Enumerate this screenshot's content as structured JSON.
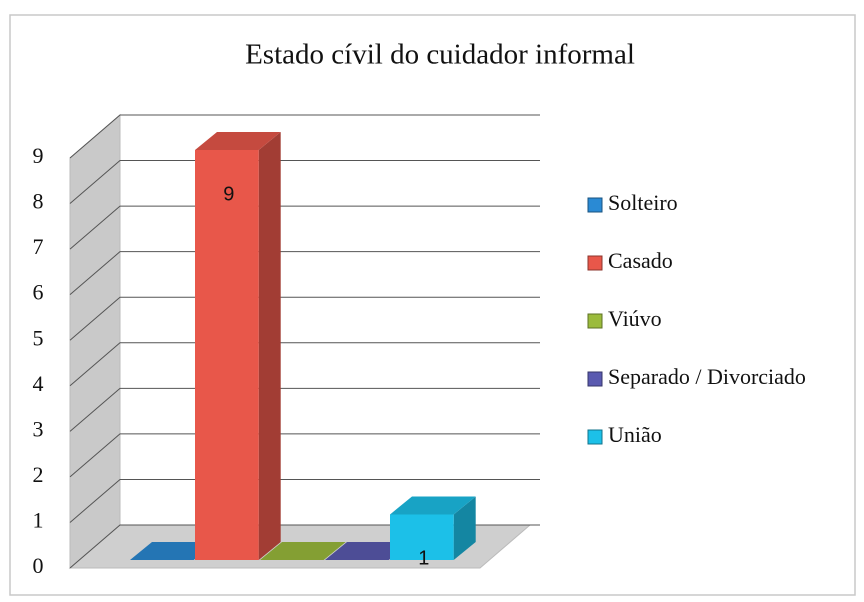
{
  "chart_data": {
    "type": "bar3d",
    "title": "Estado cívil do cuidador informal",
    "categories": [
      "Solteiro",
      "Casado",
      "Viúvo",
      "Separado / Divorciado",
      "União"
    ],
    "values": [
      0,
      9,
      0,
      0,
      1
    ],
    "colors": [
      "#2a8ad4",
      "#e8574a",
      "#9bbb3c",
      "#5a5ab0",
      "#1cc0e8"
    ],
    "ylim": [
      0,
      9
    ],
    "yticks": [
      0,
      1,
      2,
      3,
      4,
      5,
      6,
      7,
      8,
      9
    ],
    "grid": true,
    "legend": "right"
  }
}
